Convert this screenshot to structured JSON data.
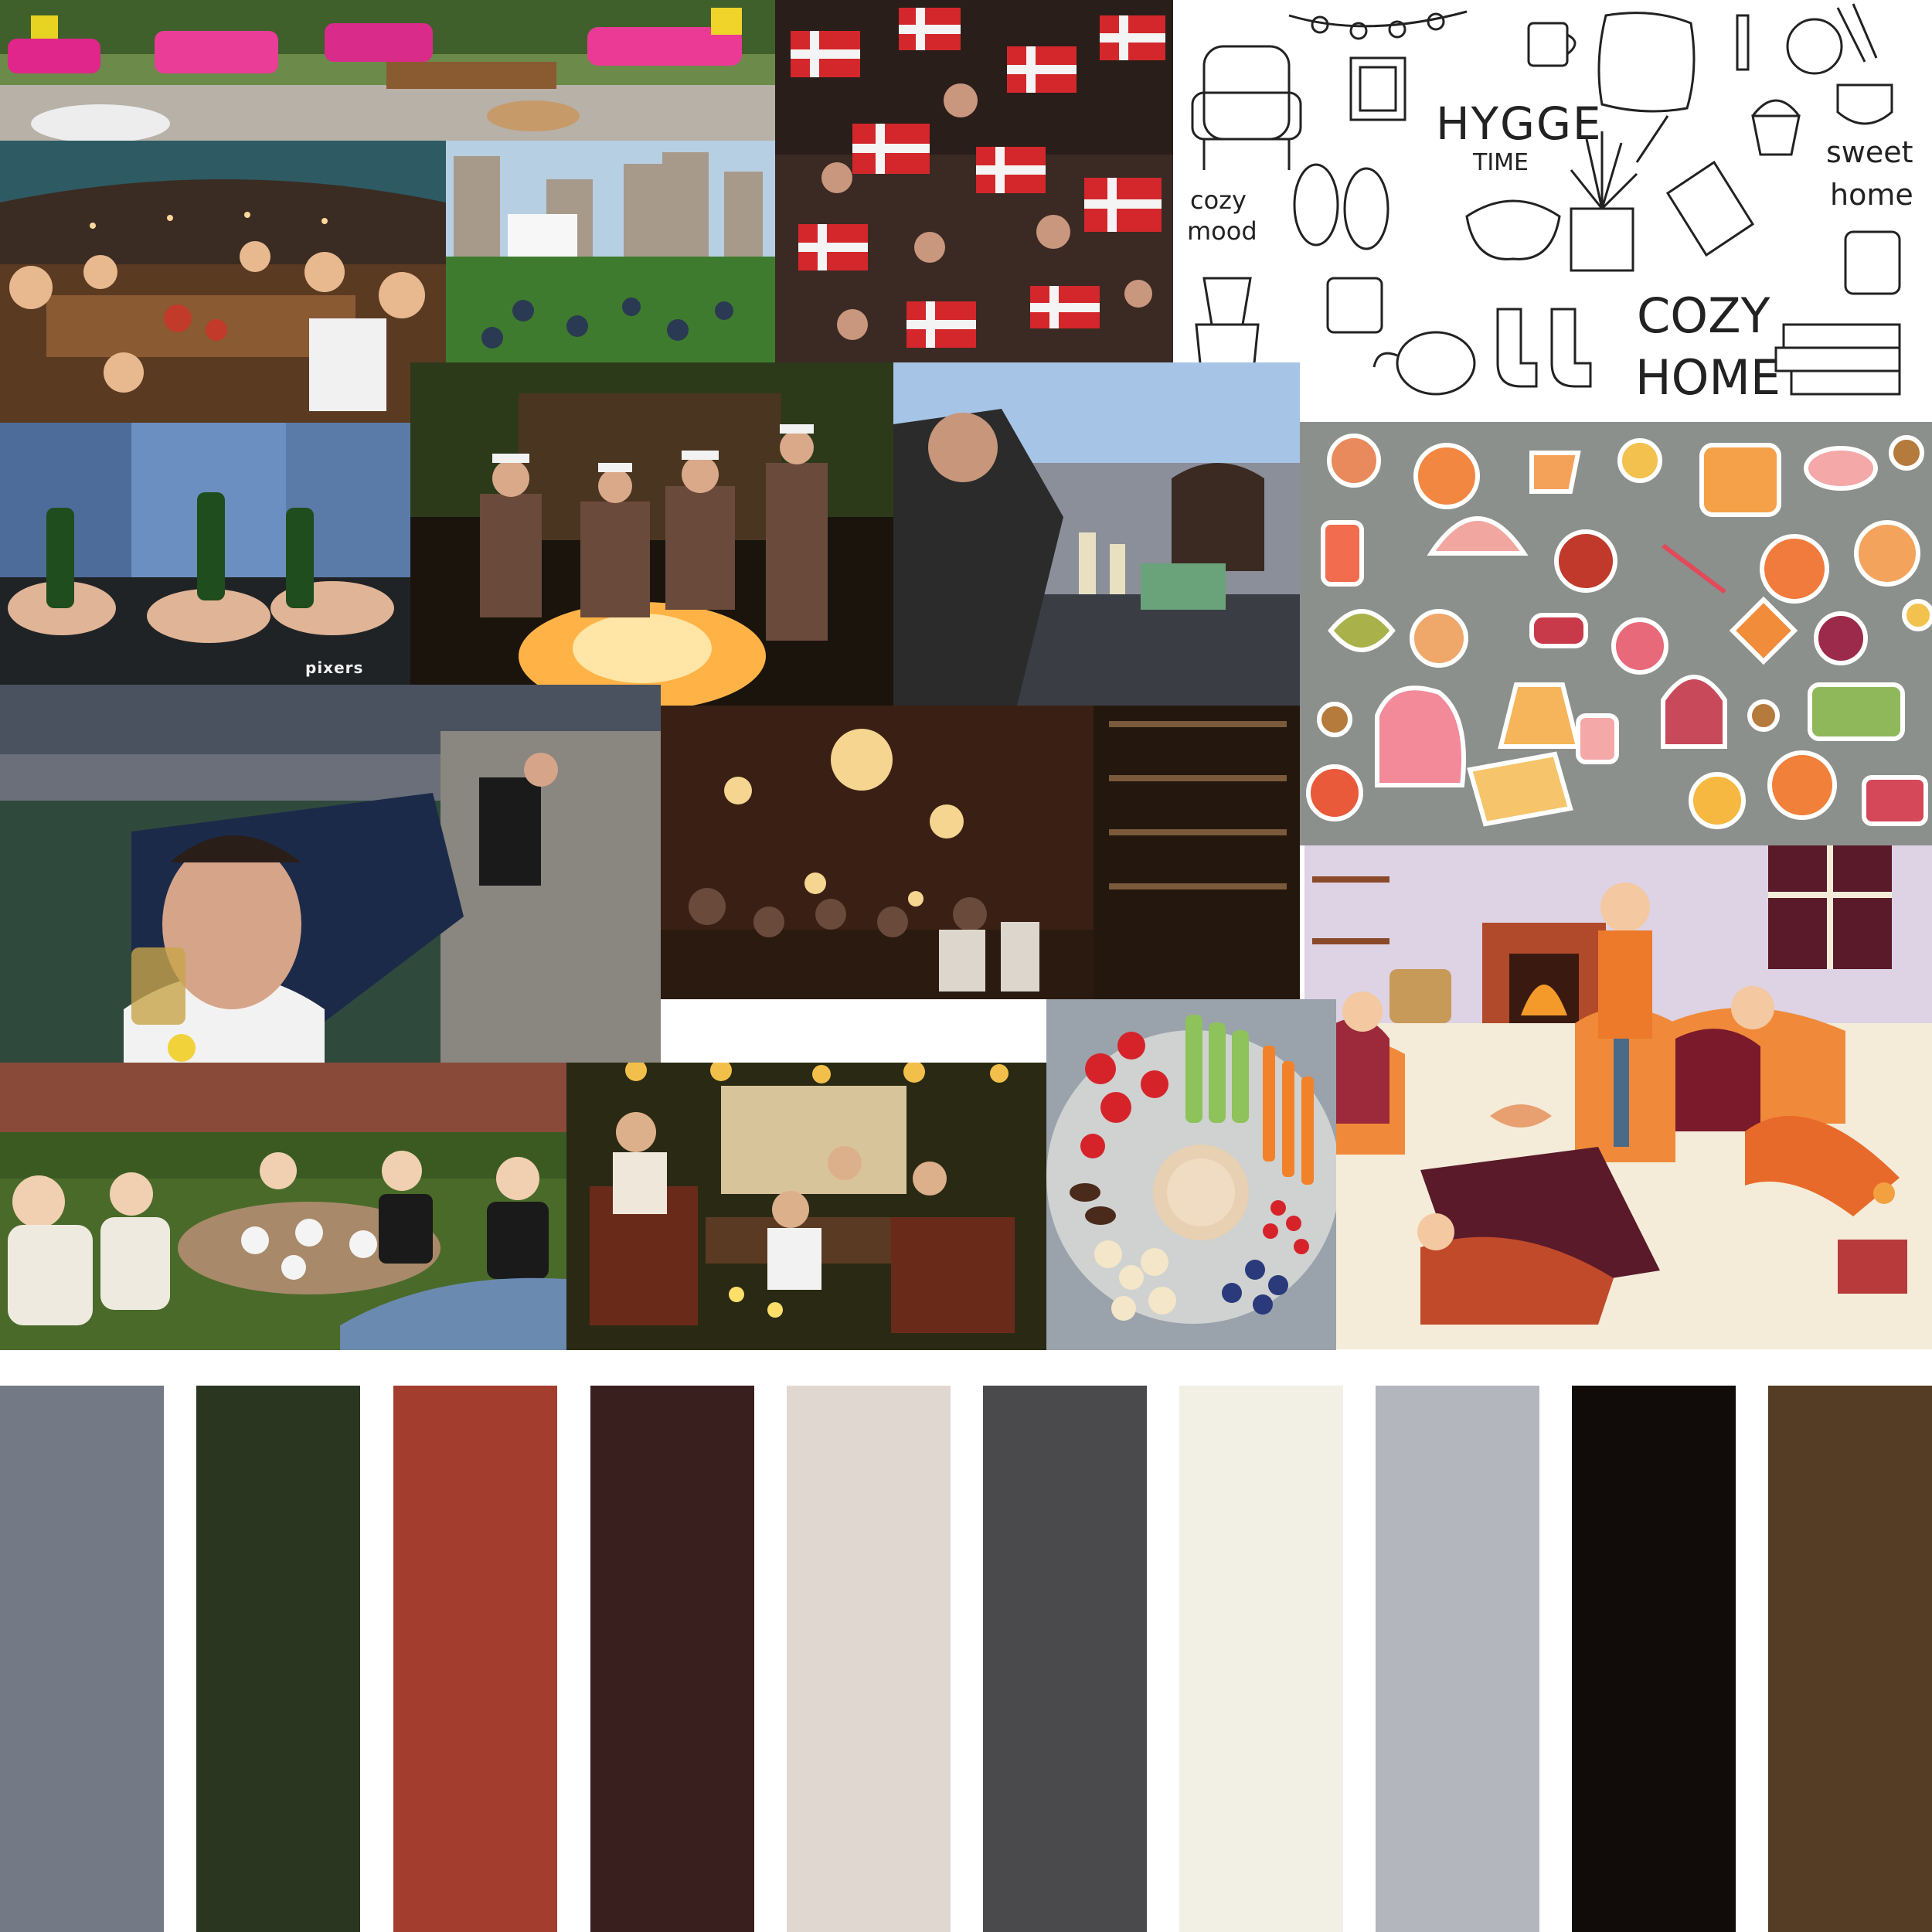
{
  "collage": {
    "photos": [
      {
        "id": "garden-lounge",
        "name": "photo-garden-lounge-pink-cushions"
      },
      {
        "id": "danish-flags",
        "name": "photo-crowd-danish-flags"
      },
      {
        "id": "tent-dinner",
        "name": "photo-tent-dinner-toast"
      },
      {
        "id": "outdoor-cinema",
        "name": "photo-outdoor-cinema-park"
      },
      {
        "id": "beer-bottles",
        "name": "photo-beer-bottles-table"
      },
      {
        "id": "bonfire",
        "name": "photo-bonfire-student-caps"
      },
      {
        "id": "rooftop-drinks",
        "name": "photo-rooftop-drinks"
      },
      {
        "id": "harbor-beer",
        "name": "photo-harbor-man-drinking"
      },
      {
        "id": "pub-interior",
        "name": "photo-pub-chandeliers"
      },
      {
        "id": "garden-lunch",
        "name": "photo-garden-lunch-friends"
      },
      {
        "id": "terrace-evening",
        "name": "photo-terrace-evening-dinner"
      },
      {
        "id": "snack-platter",
        "name": "photo-snack-platter"
      }
    ],
    "watermark": "pixers",
    "hygge_illustration": {
      "title": "HYGGE",
      "subtitle": "TIME",
      "left_text_1": "cozy",
      "left_text_2": "mood",
      "right_text_1": "sweet",
      "right_text_2": "home",
      "bottom_text_1": "COZY",
      "bottom_text_2": "HOME"
    }
  },
  "palette": {
    "colors": [
      "#737985",
      "#2b3620",
      "#a33e2e",
      "#3a1f1f",
      "#e1d7d1",
      "#4a4a4c",
      "#f2efe4",
      "#b3b6bc",
      "#110c09",
      "#553c24"
    ]
  }
}
